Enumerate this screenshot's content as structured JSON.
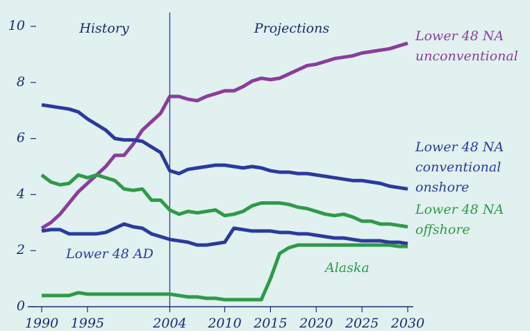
{
  "chart_data": {
    "type": "line",
    "x": [
      1990,
      1991,
      1992,
      1993,
      1994,
      1995,
      1996,
      1997,
      1998,
      1999,
      2000,
      2001,
      2002,
      2003,
      2004,
      2005,
      2006,
      2007,
      2008,
      2009,
      2010,
      2011,
      2012,
      2013,
      2014,
      2015,
      2016,
      2017,
      2018,
      2019,
      2020,
      2021,
      2022,
      2023,
      2024,
      2025,
      2026,
      2027,
      2028,
      2029,
      2030
    ],
    "series": [
      {
        "name": "Lower 48 NA unconventional",
        "color": "#8a3d9c",
        "values": [
          2.8,
          3.0,
          3.3,
          3.7,
          4.1,
          4.4,
          4.7,
          5.0,
          5.4,
          5.4,
          5.8,
          6.3,
          6.6,
          6.9,
          7.5,
          7.5,
          7.4,
          7.35,
          7.5,
          7.6,
          7.7,
          7.7,
          7.85,
          8.05,
          8.15,
          8.1,
          8.15,
          8.3,
          8.45,
          8.6,
          8.65,
          8.75,
          8.85,
          8.9,
          8.95,
          9.05,
          9.1,
          9.15,
          9.2,
          9.3,
          9.4
        ]
      },
      {
        "name": "Lower 48 NA conventional onshore",
        "color": "#2b3a9c",
        "values": [
          7.2,
          7.15,
          7.1,
          7.05,
          6.95,
          6.7,
          6.5,
          6.3,
          6.0,
          5.95,
          5.95,
          5.9,
          5.7,
          5.5,
          4.85,
          4.75,
          4.9,
          4.95,
          5.0,
          5.05,
          5.05,
          5.0,
          4.95,
          5.0,
          4.95,
          4.85,
          4.8,
          4.8,
          4.75,
          4.75,
          4.7,
          4.65,
          4.6,
          4.55,
          4.5,
          4.5,
          4.45,
          4.4,
          4.3,
          4.25,
          4.2
        ]
      },
      {
        "name": "Lower 48 NA offshore",
        "color": "#2f9a48",
        "values": [
          4.7,
          4.45,
          4.35,
          4.4,
          4.7,
          4.6,
          4.7,
          4.6,
          4.5,
          4.2,
          4.15,
          4.2,
          3.8,
          3.8,
          3.45,
          3.3,
          3.4,
          3.35,
          3.4,
          3.45,
          3.25,
          3.3,
          3.4,
          3.6,
          3.7,
          3.7,
          3.7,
          3.65,
          3.55,
          3.5,
          3.4,
          3.3,
          3.25,
          3.3,
          3.2,
          3.05,
          3.05,
          2.95,
          2.95,
          2.9,
          2.85
        ]
      },
      {
        "name": "Lower 48 AD",
        "color": "#2b3a9c",
        "values": [
          2.7,
          2.75,
          2.75,
          2.6,
          2.6,
          2.6,
          2.6,
          2.65,
          2.8,
          2.95,
          2.85,
          2.8,
          2.6,
          2.5,
          2.4,
          2.35,
          2.3,
          2.2,
          2.2,
          2.25,
          2.3,
          2.8,
          2.75,
          2.7,
          2.7,
          2.7,
          2.65,
          2.65,
          2.6,
          2.6,
          2.55,
          2.5,
          2.45,
          2.45,
          2.4,
          2.35,
          2.35,
          2.35,
          2.3,
          2.3,
          2.25
        ]
      },
      {
        "name": "Alaska",
        "color": "#2f9a48",
        "values": [
          0.4,
          0.4,
          0.4,
          0.4,
          0.5,
          0.45,
          0.45,
          0.45,
          0.45,
          0.45,
          0.45,
          0.45,
          0.45,
          0.45,
          0.45,
          0.4,
          0.35,
          0.35,
          0.3,
          0.3,
          0.25,
          0.25,
          0.25,
          0.25,
          0.25,
          1.0,
          1.9,
          2.1,
          2.2,
          2.2,
          2.2,
          2.2,
          2.2,
          2.2,
          2.2,
          2.2,
          2.2,
          2.2,
          2.2,
          2.15,
          2.15
        ]
      }
    ],
    "annotations": [
      "History",
      "Projections"
    ],
    "divider": 2004,
    "xlim": [
      1990,
      2030
    ],
    "xticks": [
      1990,
      1995,
      2004,
      2010,
      2015,
      2020,
      2025,
      2030
    ],
    "ylim": [
      0,
      10
    ],
    "yticks": [
      0,
      2,
      4,
      6,
      8,
      10
    ]
  }
}
